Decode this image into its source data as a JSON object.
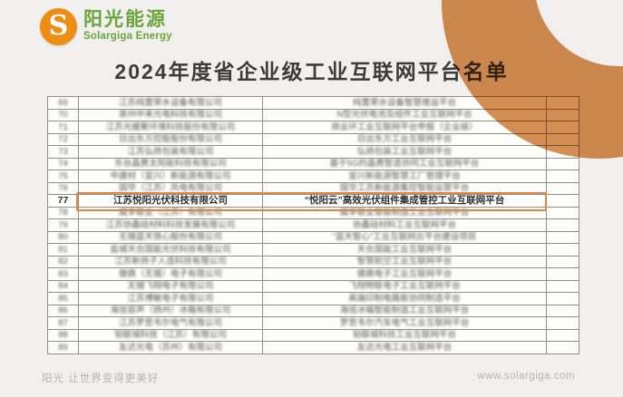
{
  "brand": {
    "logo_letter": "S",
    "name_cn": "阳光能源",
    "name_en": "Solargiga Energy"
  },
  "title": "2024年度省企业级工业互联网平台名单",
  "table": {
    "rows": [
      {
        "no": "69",
        "company": "江苏纯置荣水设备有限公司",
        "platform": "纯置荣水设备智慧维运平台",
        "extra": "",
        "blurred": true,
        "highlighted": false
      },
      {
        "no": "70",
        "company": "泉州中来光电科技有限公司",
        "platform": "N型光伏电池及组件工业互联网平台",
        "extra": "",
        "blurred": true,
        "highlighted": false
      },
      {
        "no": "71",
        "company": "江苏光缓聚环境科技股份有限公司",
        "platform": "商业环工业互联网平台申报（企业级）",
        "extra": "",
        "blurred": true,
        "highlighted": false
      },
      {
        "no": "72",
        "company": "日出东方控股股份有限公司",
        "platform": "日出东方工业互联网平台",
        "extra": "",
        "blurred": true,
        "highlighted": false
      },
      {
        "no": "73",
        "company": "江苏弘扬包装有限公司",
        "platform": "弘扬包装工业互联网平台",
        "extra": "",
        "blurred": true,
        "highlighted": false
      },
      {
        "no": "74",
        "company": "东台晶费太阳能科技有限公司",
        "platform": "基于5G的晶费智造协同工业互联网平台",
        "extra": "",
        "blurred": true,
        "highlighted": false
      },
      {
        "no": "75",
        "company": "中建材（宜兴）新能源有限公司",
        "platform": "宜兴新能源智慧工厂管理平台",
        "extra": "",
        "blurred": true,
        "highlighted": false
      },
      {
        "no": "76",
        "company": "国华（江苏）风电有限公司",
        "platform": "国华工苏新能源集控智能运营平台",
        "extra": "",
        "blurred": true,
        "highlighted": false
      },
      {
        "no": "77",
        "company": "江苏悦阳光伏科技有限公司",
        "platform": "“悦阳云”高效光伏组件集成管控工业互联网平台",
        "extra": "",
        "blurred": false,
        "highlighted": true
      },
      {
        "no": "78",
        "company": "威孚联业（江苏）有限公司",
        "platform": "威孚联业智能制造工业互联网平台",
        "extra": "",
        "blurred": true,
        "highlighted": false
      },
      {
        "no": "79",
        "company": "江苏协鑫硅材料科技发展有限公司",
        "platform": "协鑫硅材料工业互联网平台",
        "extra": "",
        "blurred": true,
        "highlighted": false
      },
      {
        "no": "80",
        "company": "无锡蓝天铁心股份有限公司",
        "platform": "“蓝天智心”工业互联网云平台建设项目",
        "extra": "",
        "blurred": true,
        "highlighted": false
      },
      {
        "no": "81",
        "company": "盐城天合国能光伏科技有限公司",
        "platform": "天合国能工业互联网平台",
        "extra": "",
        "blurred": true,
        "highlighted": false
      },
      {
        "no": "82",
        "company": "江苏新扬子人造科技有限公司",
        "platform": "智慧航空工业互联网平台",
        "extra": "",
        "blurred": true,
        "highlighted": false
      },
      {
        "no": "83",
        "company": "健鼎（无锡）电子有限公司",
        "platform": "健鼎电子工业互联网平台",
        "extra": "",
        "blurred": true,
        "highlighted": false
      },
      {
        "no": "84",
        "company": "无锡飞翔电子有限公司",
        "platform": "飞翔物联电子工业互联网平台",
        "extra": "",
        "blurred": true,
        "highlighted": false
      },
      {
        "no": "85",
        "company": "江苏博敏电子有限公司",
        "platform": "高端印制电路板协同制造平台",
        "extra": "",
        "blurred": true,
        "highlighted": false
      },
      {
        "no": "86",
        "company": "海信容声（扬州）冰箱有限公司",
        "platform": "海信冰箱智能制造工业互联网平台",
        "extra": "",
        "blurred": true,
        "highlighted": false
      },
      {
        "no": "87",
        "company": "江苏罗思韦尔电气有限公司",
        "platform": "罗思韦尔汽车电气工业互联网平台",
        "extra": "",
        "blurred": true,
        "highlighted": false
      },
      {
        "no": "88",
        "company": "铂联城科技（江苏）有限公司",
        "platform": "铂联城科技工业互联网平台",
        "extra": "",
        "blurred": true,
        "highlighted": false
      },
      {
        "no": "89",
        "company": "友达光电（苏州）有限公司",
        "platform": "友达光电工业互联网平台",
        "extra": "",
        "blurred": true,
        "highlighted": false
      }
    ]
  },
  "footer": {
    "slogan": "阳光 让世界变得更美好",
    "website": "www.solargiga.com"
  },
  "colors": {
    "accent_orange": "#e0873b",
    "decor_orange": "#d5894a",
    "logo_orange": "#ee8d14",
    "brand_green": "#6aa53c",
    "background": "#f2f0ee"
  }
}
